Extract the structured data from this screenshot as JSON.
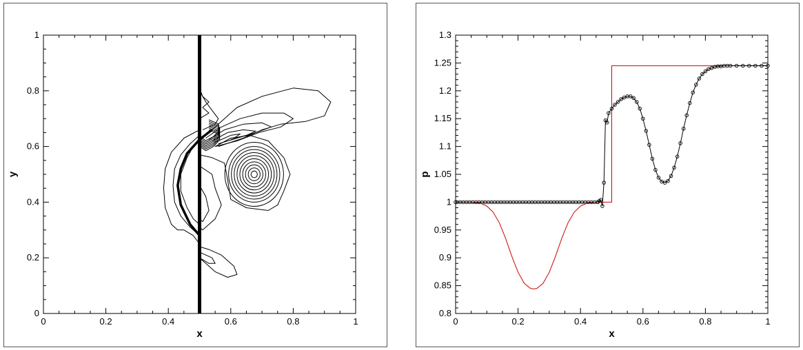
{
  "chart_data": [
    {
      "type": "contour",
      "xlabel": "x",
      "ylabel": "y",
      "xlim": [
        0,
        1
      ],
      "ylim": [
        0,
        1
      ],
      "xticks": [
        "0",
        "0.2",
        "0.4",
        "0.6",
        "0.8",
        "1"
      ],
      "yticks": [
        "0",
        "0.2",
        "0.4",
        "0.6",
        "0.8",
        "1"
      ],
      "shock_x": 0.5,
      "vortex_center": [
        0.675,
        0.5
      ],
      "line_color": "#000000",
      "contours": [
        [
          [
            0.5,
            0.62
          ],
          [
            0.56,
            0.68
          ],
          [
            0.62,
            0.74
          ],
          [
            0.7,
            0.78
          ],
          [
            0.8,
            0.81
          ],
          [
            0.88,
            0.8
          ],
          [
            0.92,
            0.76
          ],
          [
            0.9,
            0.71
          ],
          [
            0.84,
            0.69
          ],
          [
            0.76,
            0.68
          ],
          [
            0.7,
            0.66
          ],
          [
            0.64,
            0.63
          ],
          [
            0.56,
            0.6
          ]
        ],
        [
          [
            0.52,
            0.63
          ],
          [
            0.57,
            0.67
          ],
          [
            0.63,
            0.7
          ],
          [
            0.7,
            0.72
          ],
          [
            0.77,
            0.72
          ],
          [
            0.8,
            0.7
          ],
          [
            0.76,
            0.67
          ],
          [
            0.69,
            0.65
          ],
          [
            0.62,
            0.62
          ],
          [
            0.55,
            0.6
          ]
        ],
        [
          [
            0.53,
            0.625
          ],
          [
            0.58,
            0.66
          ],
          [
            0.64,
            0.68
          ],
          [
            0.7,
            0.685
          ],
          [
            0.73,
            0.67
          ],
          [
            0.68,
            0.65
          ],
          [
            0.62,
            0.63
          ],
          [
            0.56,
            0.61
          ]
        ],
        [
          [
            0.54,
            0.62
          ],
          [
            0.59,
            0.65
          ],
          [
            0.64,
            0.66
          ],
          [
            0.68,
            0.655
          ],
          [
            0.65,
            0.64
          ],
          [
            0.6,
            0.625
          ]
        ],
        [
          [
            0.55,
            0.615
          ],
          [
            0.6,
            0.64
          ],
          [
            0.63,
            0.645
          ],
          [
            0.61,
            0.63
          ]
        ],
        [
          [
            0.5,
            0.57
          ],
          [
            0.54,
            0.56
          ],
          [
            0.58,
            0.54
          ],
          [
            0.59,
            0.48
          ],
          [
            0.6,
            0.41
          ],
          [
            0.65,
            0.38
          ],
          [
            0.72,
            0.37
          ],
          [
            0.75,
            0.39
          ],
          [
            0.77,
            0.44
          ],
          [
            0.79,
            0.5
          ],
          [
            0.77,
            0.56
          ],
          [
            0.72,
            0.62
          ],
          [
            0.66,
            0.64
          ],
          [
            0.6,
            0.63
          ],
          [
            0.55,
            0.6
          ]
        ],
        [
          [
            0.5,
            0.53
          ],
          [
            0.54,
            0.5
          ],
          [
            0.55,
            0.45
          ],
          [
            0.57,
            0.39
          ],
          [
            0.55,
            0.34
          ],
          [
            0.51,
            0.3
          ],
          [
            0.5,
            0.31
          ]
        ],
        [
          [
            0.5,
            0.46
          ],
          [
            0.52,
            0.42
          ],
          [
            0.53,
            0.37
          ],
          [
            0.51,
            0.33
          ],
          [
            0.5,
            0.34
          ]
        ],
        [
          [
            0.5,
            0.24
          ],
          [
            0.53,
            0.23
          ],
          [
            0.57,
            0.21
          ],
          [
            0.61,
            0.17
          ],
          [
            0.62,
            0.14
          ],
          [
            0.59,
            0.13
          ],
          [
            0.55,
            0.15
          ],
          [
            0.51,
            0.19
          ],
          [
            0.5,
            0.2
          ]
        ],
        [
          [
            0.5,
            0.22
          ],
          [
            0.54,
            0.2
          ],
          [
            0.55,
            0.18
          ],
          [
            0.53,
            0.18
          ],
          [
            0.5,
            0.2
          ]
        ],
        [
          [
            0.5,
            0.81
          ],
          [
            0.51,
            0.78
          ],
          [
            0.53,
            0.76
          ],
          [
            0.51,
            0.74
          ],
          [
            0.53,
            0.72
          ],
          [
            0.5,
            0.7
          ]
        ],
        [
          [
            0.5,
            0.8
          ],
          [
            0.52,
            0.76
          ],
          [
            0.54,
            0.73
          ],
          [
            0.56,
            0.7
          ],
          [
            0.55,
            0.68
          ],
          [
            0.51,
            0.66
          ]
        ],
        [
          [
            0.5,
            0.66
          ],
          [
            0.45,
            0.63
          ],
          [
            0.41,
            0.58
          ],
          [
            0.39,
            0.52
          ],
          [
            0.385,
            0.45
          ],
          [
            0.39,
            0.38
          ],
          [
            0.41,
            0.32
          ],
          [
            0.43,
            0.3
          ],
          [
            0.45,
            0.3
          ],
          [
            0.48,
            0.28
          ],
          [
            0.5,
            0.25
          ]
        ],
        [
          [
            0.5,
            0.64
          ],
          [
            0.47,
            0.61
          ],
          [
            0.44,
            0.57
          ],
          [
            0.42,
            0.52
          ],
          [
            0.415,
            0.46
          ],
          [
            0.42,
            0.4
          ],
          [
            0.44,
            0.35
          ],
          [
            0.47,
            0.31
          ],
          [
            0.5,
            0.28
          ]
        ],
        [
          [
            0.5,
            0.62
          ],
          [
            0.48,
            0.6
          ],
          [
            0.46,
            0.56
          ],
          [
            0.44,
            0.5
          ],
          [
            0.44,
            0.44
          ],
          [
            0.46,
            0.38
          ],
          [
            0.48,
            0.34
          ],
          [
            0.5,
            0.32
          ]
        ]
      ],
      "vortex_rings": [
        [
          0.01,
          0.012
        ],
        [
          0.019,
          0.023
        ],
        [
          0.028,
          0.034
        ],
        [
          0.037,
          0.045
        ],
        [
          0.046,
          0.056
        ],
        [
          0.055,
          0.067
        ],
        [
          0.064,
          0.078
        ],
        [
          0.073,
          0.089
        ],
        [
          0.082,
          0.1
        ],
        [
          0.094,
          0.115
        ]
      ]
    },
    {
      "type": "line",
      "xlabel": "x",
      "ylabel": "p",
      "xlim": [
        0,
        1
      ],
      "ylim": [
        0.8,
        1.3
      ],
      "xticks": [
        "0",
        "0.2",
        "0.4",
        "0.6",
        "0.8",
        "1"
      ],
      "yticks": [
        "0.8",
        "0.85",
        "0.9",
        "0.95",
        "1",
        "1.05",
        "1.1",
        "1.15",
        "1.2",
        "1.25",
        "1.3"
      ],
      "series": [
        {
          "color": "#cc0000",
          "marker": "none",
          "x": [
            0,
            0.05,
            0.08,
            0.1,
            0.12,
            0.14,
            0.16,
            0.18,
            0.2,
            0.22,
            0.24,
            0.25,
            0.26,
            0.28,
            0.3,
            0.32,
            0.34,
            0.36,
            0.38,
            0.4,
            0.42,
            0.45,
            0.5,
            0.5,
            0.86,
            1.0
          ],
          "y": [
            1.0,
            1.0,
            0.998,
            0.993,
            0.982,
            0.963,
            0.935,
            0.903,
            0.874,
            0.854,
            0.845,
            0.844,
            0.845,
            0.854,
            0.874,
            0.903,
            0.935,
            0.963,
            0.982,
            0.993,
            0.998,
            1.0,
            1.0,
            1.245,
            1.245,
            1.245
          ]
        },
        {
          "color": "#000000",
          "marker": "circle",
          "x": [
            0,
            0.005,
            0.455,
            0.46,
            0.465,
            0.47,
            0.475,
            0.48,
            0.485,
            0.49,
            0.5,
            0.51,
            0.52,
            0.53,
            0.54,
            0.55,
            0.56,
            0.57,
            0.58,
            0.59,
            0.6,
            0.61,
            0.62,
            0.63,
            0.64,
            0.65,
            0.66,
            0.67,
            0.68,
            0.69,
            0.7,
            0.71,
            0.72,
            0.73,
            0.74,
            0.75,
            0.76,
            0.77,
            0.78,
            0.79,
            0.8,
            0.81,
            0.82,
            0.83,
            0.84,
            0.85,
            0.86,
            0.87,
            0.88,
            0.9,
            0.92,
            0.94,
            0.96,
            0.98,
            1.0
          ],
          "y": [
            1.0,
            1.0,
            1.0,
            1.002,
            1.004,
            0.993,
            1.035,
            1.147,
            1.143,
            1.16,
            1.168,
            1.175,
            1.18,
            1.185,
            1.188,
            1.19,
            1.19,
            1.187,
            1.18,
            1.168,
            1.15,
            1.128,
            1.103,
            1.078,
            1.058,
            1.044,
            1.037,
            1.035,
            1.038,
            1.047,
            1.062,
            1.082,
            1.106,
            1.132,
            1.156,
            1.178,
            1.197,
            1.211,
            1.222,
            1.23,
            1.235,
            1.239,
            1.241,
            1.243,
            1.244,
            1.244,
            1.245,
            1.245,
            1.245,
            1.245,
            1.245,
            1.245,
            1.245,
            1.245,
            1.245
          ],
          "flat_x_range": [
            0.005,
            0.455
          ],
          "flat_y": 1.0
        }
      ]
    }
  ]
}
